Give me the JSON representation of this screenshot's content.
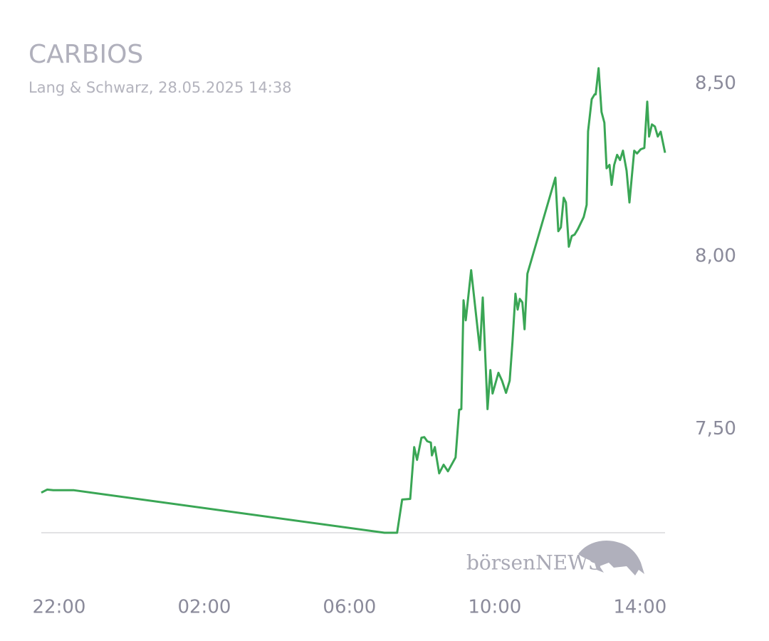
{
  "chart_data": {
    "type": "line",
    "title": "CARBIOS",
    "subtitle": "Lang & Schwarz, 28.05.2025 14:38",
    "watermark": "börsenNEWS",
    "x": [
      -0.49,
      -0.33,
      -0.16,
      0.41,
      8.96,
      9.31,
      9.45,
      9.67,
      9.78,
      9.86,
      9.98,
      10.06,
      10.14,
      10.24,
      10.27,
      10.35,
      10.47,
      10.59,
      10.71,
      10.92,
      11.02,
      11.08,
      11.14,
      11.2,
      11.35,
      11.59,
      11.67,
      11.8,
      11.88,
      11.94,
      12.1,
      12.2,
      12.31,
      12.41,
      12.49,
      12.57,
      12.63,
      12.69,
      12.76,
      12.82,
      12.9,
      13.67,
      13.75,
      13.82,
      13.9,
      13.96,
      14.04,
      14.12,
      14.2,
      14.29,
      14.45,
      14.53,
      14.57,
      14.67,
      14.75,
      14.78,
      14.86,
      14.94,
      15.02,
      15.08,
      15.16,
      15.22,
      15.29,
      15.37,
      15.45,
      15.53,
      15.63,
      15.71,
      15.84,
      15.92,
      16.02,
      16.12,
      16.2,
      16.25,
      16.33,
      16.41,
      16.49,
      16.57,
      16.69
    ],
    "series": [
      {
        "name": "CARBIOS",
        "color": "#3aa655",
        "values": [
          7.316,
          7.325,
          7.323,
          7.323,
          7.2,
          7.2,
          7.296,
          7.298,
          7.448,
          7.411,
          7.475,
          7.477,
          7.465,
          7.461,
          7.424,
          7.448,
          7.372,
          7.397,
          7.378,
          7.418,
          7.556,
          7.558,
          7.873,
          7.815,
          7.96,
          7.729,
          7.881,
          7.558,
          7.671,
          7.603,
          7.663,
          7.64,
          7.605,
          7.64,
          7.754,
          7.892,
          7.846,
          7.877,
          7.867,
          7.789,
          7.95,
          8.228,
          8.073,
          8.084,
          8.17,
          8.156,
          8.028,
          8.059,
          8.063,
          8.079,
          8.114,
          8.149,
          8.362,
          8.455,
          8.469,
          8.469,
          8.545,
          8.418,
          8.387,
          8.255,
          8.265,
          8.207,
          8.265,
          8.294,
          8.279,
          8.306,
          8.248,
          8.156,
          8.306,
          8.298,
          8.31,
          8.314,
          8.448,
          8.347,
          8.382,
          8.376,
          8.347,
          8.361,
          8.3
        ]
      }
    ],
    "xlim": [
      -0.49,
      16.69
    ],
    "xticks": [
      {
        "value": 0,
        "label": "22:00"
      },
      {
        "value": 4,
        "label": "02:00"
      },
      {
        "value": 8,
        "label": "06:00"
      },
      {
        "value": 12,
        "label": "10:00"
      },
      {
        "value": 16,
        "label": "14:00"
      }
    ],
    "ylim": [
      7.2,
      8.56
    ],
    "yticks": [
      {
        "value": 7.5,
        "label": "7,50"
      },
      {
        "value": 8,
        "label": "8,00"
      },
      {
        "value": 8.5,
        "label": "8,50"
      }
    ],
    "grid": false
  }
}
